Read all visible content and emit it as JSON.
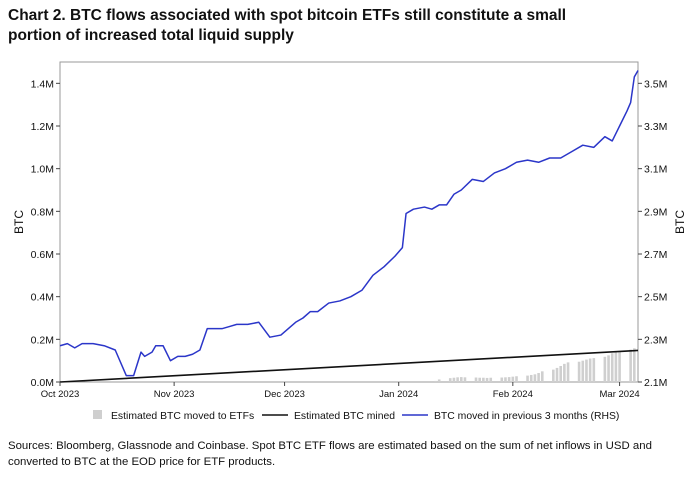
{
  "title": {
    "line1": "Chart 2. BTC flows associated with spot bitcoin ETFs still constitute a small",
    "line2": "portion of increased total liquid supply"
  },
  "source_note": "Sources: Bloomberg, Glassnode and Coinbase. Spot BTC ETF flows are estimated based on the sum of net inflows in USD and converted to BTC at the EOD price for ETF products.",
  "colors": {
    "mined": "#111111",
    "moved": "#2b36c9",
    "etf": "#cfcfcf",
    "axis": "#444444"
  },
  "chart_data": {
    "type": "line",
    "title": "Chart 2. BTC flows associated with spot bitcoin ETFs still constitute a small portion of increased total liquid supply",
    "ylabel": "BTC",
    "y2label": "BTC",
    "ylim": [
      0,
      1.5
    ],
    "y2lim": [
      2.1,
      3.6
    ],
    "xlim": [
      "2023-10-01",
      "2024-03-06"
    ],
    "yticks": [
      "0.0M",
      "0.2M",
      "0.4M",
      "0.6M",
      "0.8M",
      "1.0M",
      "1.2M",
      "1.4M"
    ],
    "y2ticks": [
      "2.1M",
      "2.3M",
      "2.5M",
      "2.7M",
      "2.9M",
      "3.1M",
      "3.3M",
      "3.5M"
    ],
    "xticks": [
      {
        "date": "2023-10-01",
        "label": "Oct 2023"
      },
      {
        "date": "2023-11-01",
        "label": "Nov 2023"
      },
      {
        "date": "2023-12-01",
        "label": "Dec 2023"
      },
      {
        "date": "2024-01-01",
        "label": "Jan 2024"
      },
      {
        "date": "2024-02-01",
        "label": "Feb 2024"
      },
      {
        "date": "2024-03-01",
        "label": "Mar 2024"
      }
    ],
    "legend_position": "bottom",
    "legend": [
      {
        "label": "Estimated BTC moved to ETFs",
        "kind": "bar"
      },
      {
        "label": "Estimated BTC mined",
        "kind": "line-black"
      },
      {
        "label": "BTC moved in previous 3 months (RHS)",
        "kind": "line-blue"
      }
    ],
    "series": [
      {
        "name": "Estimated BTC moved to ETFs",
        "type": "bar",
        "axis": "left",
        "unit": "M BTC",
        "x": [
          "2024-01-11",
          "2024-01-12",
          "2024-01-15",
          "2024-01-16",
          "2024-01-17",
          "2024-01-18",
          "2024-01-19",
          "2024-01-22",
          "2024-01-23",
          "2024-01-24",
          "2024-01-25",
          "2024-01-26",
          "2024-01-29",
          "2024-01-30",
          "2024-01-31",
          "2024-02-01",
          "2024-02-02",
          "2024-02-05",
          "2024-02-06",
          "2024-02-07",
          "2024-02-08",
          "2024-02-09",
          "2024-02-12",
          "2024-02-13",
          "2024-02-14",
          "2024-02-15",
          "2024-02-16",
          "2024-02-19",
          "2024-02-20",
          "2024-02-21",
          "2024-02-22",
          "2024-02-23",
          "2024-02-26",
          "2024-02-27",
          "2024-02-28",
          "2024-02-29",
          "2024-03-01",
          "2024-03-04",
          "2024-03-05"
        ],
        "values": [
          0.005,
          0.012,
          0.018,
          0.02,
          0.022,
          0.023,
          0.022,
          0.021,
          0.02,
          0.02,
          0.019,
          0.02,
          0.021,
          0.022,
          0.023,
          0.025,
          0.027,
          0.03,
          0.033,
          0.036,
          0.042,
          0.05,
          0.058,
          0.066,
          0.075,
          0.085,
          0.092,
          0.095,
          0.1,
          0.105,
          0.11,
          0.112,
          0.118,
          0.125,
          0.135,
          0.14,
          0.145,
          0.152,
          0.158
        ]
      },
      {
        "name": "Estimated BTC mined",
        "type": "line",
        "axis": "left",
        "unit": "M BTC",
        "x": [
          "2023-10-01",
          "2024-03-06"
        ],
        "values": [
          0.0,
          0.148
        ]
      },
      {
        "name": "BTC moved in previous 3 months (RHS)",
        "type": "line",
        "axis": "right",
        "unit": "M BTC",
        "x": [
          "2023-10-01",
          "2023-10-03",
          "2023-10-05",
          "2023-10-07",
          "2023-10-10",
          "2023-10-13",
          "2023-10-16",
          "2023-10-19",
          "2023-10-21",
          "2023-10-23",
          "2023-10-24",
          "2023-10-26",
          "2023-10-27",
          "2023-10-29",
          "2023-10-31",
          "2023-11-02",
          "2023-11-03",
          "2023-11-04",
          "2023-11-06",
          "2023-11-08",
          "2023-11-10",
          "2023-11-12",
          "2023-11-14",
          "2023-11-16",
          "2023-11-18",
          "2023-11-21",
          "2023-11-24",
          "2023-11-27",
          "2023-11-30",
          "2023-12-02",
          "2023-12-04",
          "2023-12-06",
          "2023-12-08",
          "2023-12-10",
          "2023-12-13",
          "2023-12-16",
          "2023-12-19",
          "2023-12-22",
          "2023-12-25",
          "2023-12-28",
          "2023-12-31",
          "2024-01-02",
          "2024-01-03",
          "2024-01-05",
          "2024-01-08",
          "2024-01-10",
          "2024-01-12",
          "2024-01-14",
          "2024-01-16",
          "2024-01-18",
          "2024-01-21",
          "2024-01-24",
          "2024-01-27",
          "2024-01-30",
          "2024-02-02",
          "2024-02-05",
          "2024-02-08",
          "2024-02-11",
          "2024-02-14",
          "2024-02-17",
          "2024-02-20",
          "2024-02-23",
          "2024-02-26",
          "2024-02-28",
          "2024-03-01",
          "2024-03-03",
          "2024-03-04",
          "2024-03-05",
          "2024-03-06"
        ],
        "values": [
          2.27,
          2.28,
          2.26,
          2.28,
          2.28,
          2.27,
          2.25,
          2.13,
          2.13,
          2.24,
          2.22,
          2.24,
          2.27,
          2.27,
          2.2,
          2.22,
          2.22,
          2.22,
          2.23,
          2.25,
          2.35,
          2.35,
          2.35,
          2.36,
          2.37,
          2.37,
          2.38,
          2.31,
          2.32,
          2.35,
          2.38,
          2.4,
          2.43,
          2.43,
          2.47,
          2.48,
          2.5,
          2.53,
          2.6,
          2.64,
          2.69,
          2.73,
          2.89,
          2.91,
          2.92,
          2.91,
          2.93,
          2.93,
          2.98,
          3.0,
          3.05,
          3.04,
          3.08,
          3.1,
          3.13,
          3.14,
          3.13,
          3.15,
          3.15,
          3.18,
          3.21,
          3.2,
          3.25,
          3.23,
          3.3,
          3.37,
          3.41,
          3.53,
          3.56
        ]
      }
    ]
  }
}
